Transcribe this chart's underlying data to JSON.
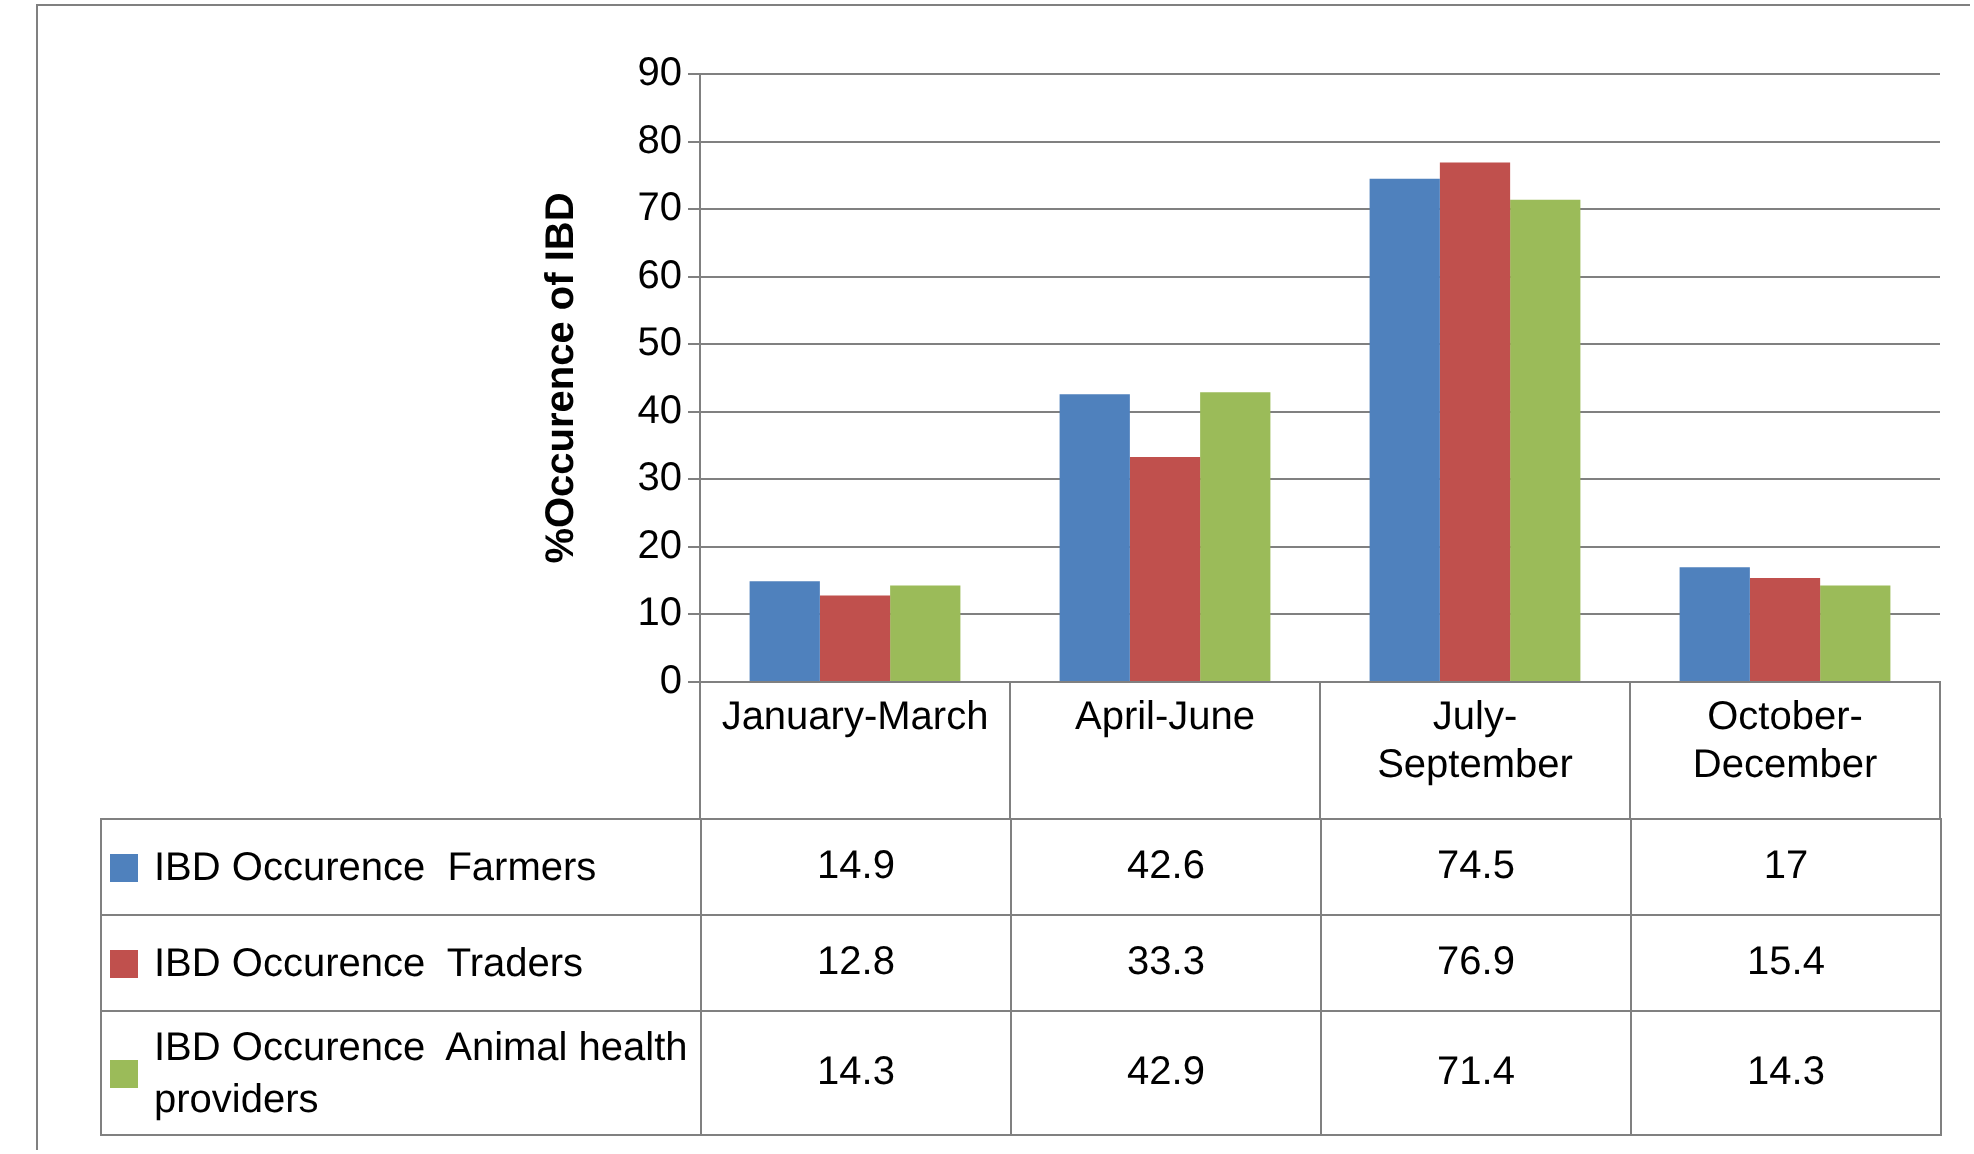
{
  "chart_data": {
    "type": "bar",
    "ylabel": "%Occurence of IBD",
    "categories": [
      "January-March",
      "April-June",
      "July-September",
      "October-December"
    ],
    "series": [
      {
        "name": "IBD Occurence  Farmers",
        "color": "#4f81bd",
        "values": [
          14.9,
          42.6,
          74.5,
          17
        ]
      },
      {
        "name": "IBD Occurence  Traders",
        "color": "#c0504d",
        "values": [
          12.8,
          33.3,
          76.9,
          15.4
        ]
      },
      {
        "name": "IBD Occurence  Animal health providers",
        "color": "#9bbb59",
        "values": [
          14.3,
          42.9,
          71.4,
          14.3
        ]
      }
    ],
    "ylim": [
      0,
      90
    ],
    "yticks": [
      0,
      10,
      20,
      30,
      40,
      50,
      60,
      70,
      80,
      90
    ],
    "grid": "y",
    "legend": "bottom",
    "data_labels": true
  }
}
